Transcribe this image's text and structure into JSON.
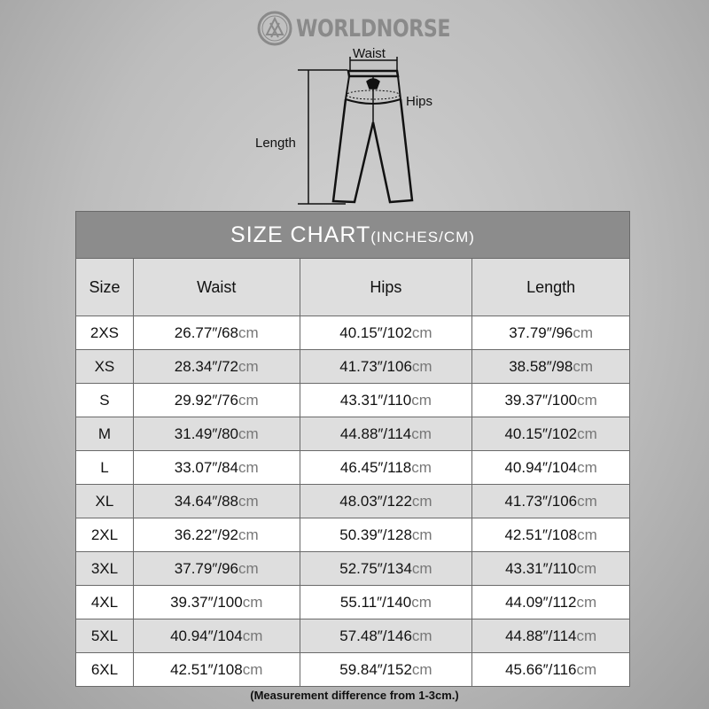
{
  "brand": {
    "name": "WORLDNORSE"
  },
  "diagram": {
    "waist_label": "Waist",
    "hips_label": "Hips",
    "length_label": "Length"
  },
  "chart": {
    "title": "SIZE CHART",
    "title_units": "(INCHES/CM)",
    "headers": [
      "Size",
      "Waist",
      "Hips",
      "Length"
    ],
    "rows": [
      {
        "size": "2XS",
        "waist_in": "26.77″/68",
        "hips_in": "40.15″/102",
        "length_in": "37.79″/96"
      },
      {
        "size": "XS",
        "waist_in": "28.34″/72",
        "hips_in": "41.73″/106",
        "length_in": "38.58″/98"
      },
      {
        "size": "S",
        "waist_in": "29.92″/76",
        "hips_in": "43.31″/110",
        "length_in": "39.37″/100"
      },
      {
        "size": "M",
        "waist_in": "31.49″/80",
        "hips_in": "44.88″/114",
        "length_in": "40.15″/102"
      },
      {
        "size": "L",
        "waist_in": "33.07″/84",
        "hips_in": "46.45″/118",
        "length_in": "40.94″/104"
      },
      {
        "size": "XL",
        "waist_in": "34.64″/88",
        "hips_in": "48.03″/122",
        "length_in": "41.73″/106"
      },
      {
        "size": "2XL",
        "waist_in": "36.22″/92",
        "hips_in": "50.39″/128",
        "length_in": "42.51″/108"
      },
      {
        "size": "3XL",
        "waist_in": "37.79″/96",
        "hips_in": "52.75″/134",
        "length_in": "43.31″/110"
      },
      {
        "size": "4XL",
        "waist_in": "39.37″/100",
        "hips_in": "55.11″/140",
        "length_in": "44.09″/112"
      },
      {
        "size": "5XL",
        "waist_in": "40.94″/104",
        "hips_in": "57.48″/146",
        "length_in": "44.88″/114"
      },
      {
        "size": "6XL",
        "waist_in": "42.51″/108",
        "hips_in": "59.84″/152",
        "length_in": "45.66″/116"
      }
    ],
    "unit": "cm",
    "colors": {
      "title_bg": "#8c8c8c",
      "header_bg": "#dedede",
      "row_alt": "#dedede",
      "row": "#ffffff"
    }
  },
  "footnote": "(Measurement difference from 1-3cm.)"
}
